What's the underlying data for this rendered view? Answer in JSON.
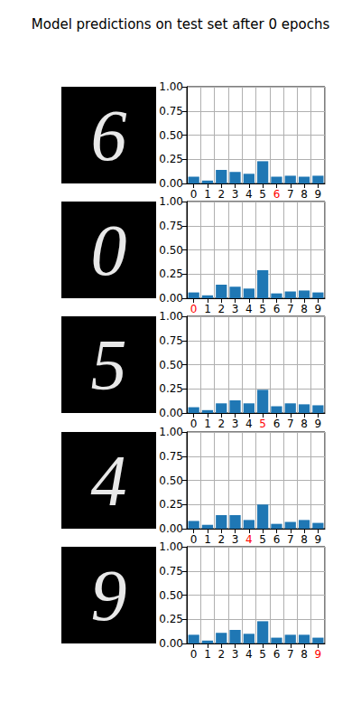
{
  "title": "Model predictions on test set after 0 epochs",
  "chart_data": [
    {
      "type": "bar",
      "true_label": "6",
      "categories": [
        "0",
        "1",
        "2",
        "3",
        "4",
        "5",
        "6",
        "7",
        "8",
        "9"
      ],
      "values": [
        0.07,
        0.03,
        0.14,
        0.12,
        0.1,
        0.23,
        0.07,
        0.08,
        0.07,
        0.08
      ],
      "color": "#1f77b4",
      "ylim": [
        0,
        1
      ],
      "yticks": [
        {
          "value": 0,
          "label": "0.00"
        },
        {
          "value": 0.25,
          "label": "0.25"
        },
        {
          "value": 0.5,
          "label": "0.50"
        },
        {
          "value": 0.75,
          "label": "0.75"
        },
        {
          "value": 1,
          "label": "1.00"
        }
      ],
      "grid": true
    },
    {
      "type": "bar",
      "true_label": "0",
      "categories": [
        "0",
        "1",
        "2",
        "3",
        "4",
        "5",
        "6",
        "7",
        "8",
        "9"
      ],
      "values": [
        0.06,
        0.03,
        0.14,
        0.12,
        0.1,
        0.29,
        0.05,
        0.07,
        0.08,
        0.06
      ],
      "color": "#1f77b4",
      "ylim": [
        0,
        1
      ],
      "yticks": [
        {
          "value": 0,
          "label": "0.00"
        },
        {
          "value": 0.25,
          "label": "0.25"
        },
        {
          "value": 0.5,
          "label": "0.50"
        },
        {
          "value": 0.75,
          "label": "0.75"
        },
        {
          "value": 1,
          "label": "1.00"
        }
      ],
      "grid": true
    },
    {
      "type": "bar",
      "true_label": "5",
      "categories": [
        "0",
        "1",
        "2",
        "3",
        "4",
        "5",
        "6",
        "7",
        "8",
        "9"
      ],
      "values": [
        0.06,
        0.03,
        0.1,
        0.13,
        0.1,
        0.24,
        0.07,
        0.1,
        0.09,
        0.08
      ],
      "color": "#1f77b4",
      "ylim": [
        0,
        1
      ],
      "yticks": [
        {
          "value": 0,
          "label": "0.00"
        },
        {
          "value": 0.25,
          "label": "0.25"
        },
        {
          "value": 0.5,
          "label": "0.50"
        },
        {
          "value": 0.75,
          "label": "0.75"
        },
        {
          "value": 1,
          "label": "1.00"
        }
      ],
      "grid": true
    },
    {
      "type": "bar",
      "true_label": "4",
      "categories": [
        "0",
        "1",
        "2",
        "3",
        "4",
        "5",
        "6",
        "7",
        "8",
        "9"
      ],
      "values": [
        0.08,
        0.04,
        0.14,
        0.14,
        0.09,
        0.25,
        0.05,
        0.07,
        0.09,
        0.06
      ],
      "color": "#1f77b4",
      "ylim": [
        0,
        1
      ],
      "yticks": [
        {
          "value": 0,
          "label": "0.00"
        },
        {
          "value": 0.25,
          "label": "0.25"
        },
        {
          "value": 0.5,
          "label": "0.50"
        },
        {
          "value": 0.75,
          "label": "0.75"
        },
        {
          "value": 1,
          "label": "1.00"
        }
      ],
      "grid": true
    },
    {
      "type": "bar",
      "true_label": "9",
      "categories": [
        "0",
        "1",
        "2",
        "3",
        "4",
        "5",
        "6",
        "7",
        "8",
        "9"
      ],
      "values": [
        0.09,
        0.03,
        0.11,
        0.14,
        0.1,
        0.23,
        0.06,
        0.09,
        0.09,
        0.06
      ],
      "color": "#1f77b4",
      "ylim": [
        0,
        1
      ],
      "yticks": [
        {
          "value": 0,
          "label": "0.00"
        },
        {
          "value": 0.25,
          "label": "0.25"
        },
        {
          "value": 0.5,
          "label": "0.50"
        },
        {
          "value": 0.75,
          "label": "0.75"
        },
        {
          "value": 1,
          "label": "1.00"
        }
      ],
      "grid": true
    }
  ]
}
